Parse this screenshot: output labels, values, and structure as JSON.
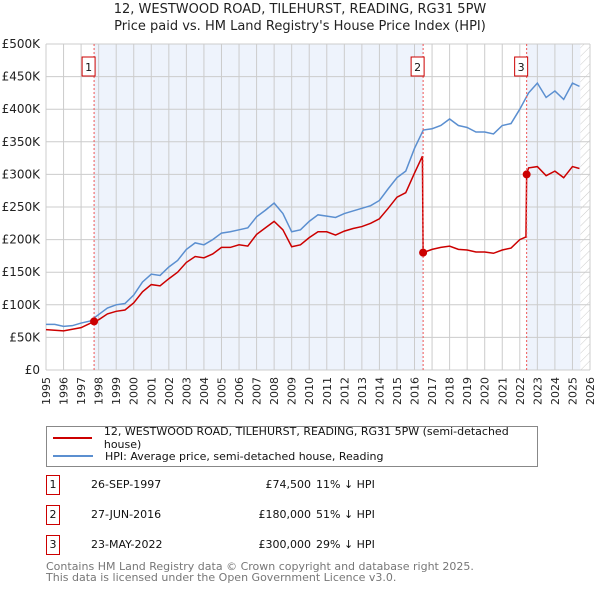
{
  "chart_data": {
    "type": "line",
    "title": "12, WESTWOOD ROAD, TILEHURST, READING, RG31 5PW",
    "subtitle": "Price paid vs. HM Land Registry's House Price Index (HPI)",
    "xlim": [
      1995,
      2026
    ],
    "ylim": [
      0,
      500000
    ],
    "x_ticks": [
      "1995",
      "1996",
      "1997",
      "1998",
      "1999",
      "2000",
      "2001",
      "2002",
      "2003",
      "2004",
      "2005",
      "2006",
      "2007",
      "2008",
      "2009",
      "2010",
      "2011",
      "2012",
      "2013",
      "2014",
      "2015",
      "2016",
      "2017",
      "2018",
      "2019",
      "2020",
      "2021",
      "2022",
      "2023",
      "2024",
      "2025",
      "2026"
    ],
    "y_ticks": [
      {
        "v": 0,
        "label": "£0"
      },
      {
        "v": 50000,
        "label": "£50K"
      },
      {
        "v": 100000,
        "label": "£100K"
      },
      {
        "v": 150000,
        "label": "£150K"
      },
      {
        "v": 200000,
        "label": "£200K"
      },
      {
        "v": 250000,
        "label": "£250K"
      },
      {
        "v": 300000,
        "label": "£300K"
      },
      {
        "v": 350000,
        "label": "£350K"
      },
      {
        "v": 400000,
        "label": "£400K"
      },
      {
        "v": 450000,
        "label": "£450K"
      },
      {
        "v": 500000,
        "label": "£500K"
      }
    ],
    "grid": true,
    "series": [
      {
        "name": "12, WESTWOOD ROAD, TILEHURST, READING, RG31 5PW (semi-detached house)",
        "color": "#cc0000",
        "x": [
          1995,
          1996,
          1997,
          1997.74,
          1998,
          1998.5,
          1999,
          1999.5,
          2000,
          2000.5,
          2001,
          2001.5,
          2002,
          2002.5,
          2003,
          2003.5,
          2004,
          2004.5,
          2005,
          2005.5,
          2006,
          2006.5,
          2007,
          2007.5,
          2008,
          2008.5,
          2009,
          2009.5,
          2010,
          2010.5,
          2011,
          2011.5,
          2012,
          2012.5,
          2013,
          2013.5,
          2014,
          2014.5,
          2015,
          2015.5,
          2016,
          2016.45,
          2016.49,
          2017,
          2017.5,
          2018,
          2018.5,
          2019,
          2019.5,
          2020,
          2020.5,
          2021,
          2021.5,
          2022,
          2022.35,
          2022.39,
          2022.5,
          2023,
          2023.5,
          2024,
          2024.5,
          2025,
          2025.4
        ],
        "y": [
          62000,
          60000,
          65000,
          74500,
          77000,
          86000,
          90000,
          92000,
          103000,
          120000,
          131000,
          129000,
          140000,
          150000,
          165000,
          174000,
          172000,
          178000,
          188000,
          188000,
          192000,
          190000,
          208000,
          218000,
          228000,
          215000,
          189000,
          192000,
          203000,
          212000,
          212000,
          207000,
          213000,
          217000,
          220000,
          225000,
          232000,
          248000,
          265000,
          272000,
          302000,
          328000,
          180000,
          185000,
          188000,
          190000,
          185000,
          184000,
          181000,
          181000,
          179000,
          184000,
          187000,
          200000,
          204000,
          300000,
          310000,
          312000,
          298000,
          305000,
          295000,
          312000,
          309000
        ]
      },
      {
        "name": "HPI: Average price, semi-detached house, Reading",
        "color": "#5b8fd0",
        "x": [
          1995,
          1995.5,
          1996,
          1996.5,
          1997,
          1997.5,
          1998,
          1998.5,
          1999,
          1999.5,
          2000,
          2000.5,
          2001,
          2001.5,
          2002,
          2002.5,
          2003,
          2003.5,
          2004,
          2004.5,
          2005,
          2005.5,
          2006,
          2006.5,
          2007,
          2007.5,
          2008,
          2008.5,
          2009,
          2009.5,
          2010,
          2010.5,
          2011,
          2011.5,
          2012,
          2012.5,
          2013,
          2013.5,
          2014,
          2014.5,
          2015,
          2015.5,
          2016,
          2016.5,
          2017,
          2017.5,
          2018,
          2018.5,
          2019,
          2019.5,
          2020,
          2020.5,
          2021,
          2021.5,
          2022,
          2022.5,
          2023,
          2023.5,
          2024,
          2024.5,
          2025,
          2025.4
        ],
        "y": [
          70000,
          70000,
          67000,
          68000,
          72000,
          75000,
          85000,
          95000,
          100000,
          102000,
          115000,
          135000,
          147000,
          145000,
          158000,
          168000,
          185000,
          195000,
          192000,
          200000,
          210000,
          212000,
          215000,
          218000,
          235000,
          245000,
          256000,
          240000,
          212000,
          215000,
          228000,
          238000,
          236000,
          234000,
          240000,
          244000,
          248000,
          252000,
          260000,
          278000,
          295000,
          305000,
          340000,
          368000,
          370000,
          375000,
          385000,
          375000,
          372000,
          365000,
          365000,
          362000,
          375000,
          378000,
          400000,
          425000,
          440000,
          418000,
          428000,
          415000,
          440000,
          435000
        ]
      }
    ],
    "sales": [
      {
        "label": "1",
        "x": 1997.74,
        "y": 74500,
        "date": "26-SEP-1997",
        "price": "£74,500",
        "hpi": "11% ↓ HPI"
      },
      {
        "label": "2",
        "x": 2016.49,
        "y": 180000,
        "date": "27-JUN-2016",
        "price": "£180,000",
        "hpi": "51% ↓ HPI"
      },
      {
        "label": "3",
        "x": 2022.39,
        "y": 300000,
        "date": "23-MAY-2022",
        "price": "£300,000",
        "hpi": "29% ↓ HPI"
      }
    ],
    "legend_position": "below"
  },
  "footer": [
    "Contains HM Land Registry data © Crown copyright and database right 2025.",
    "This data is licensed under the Open Government Licence v3.0."
  ]
}
